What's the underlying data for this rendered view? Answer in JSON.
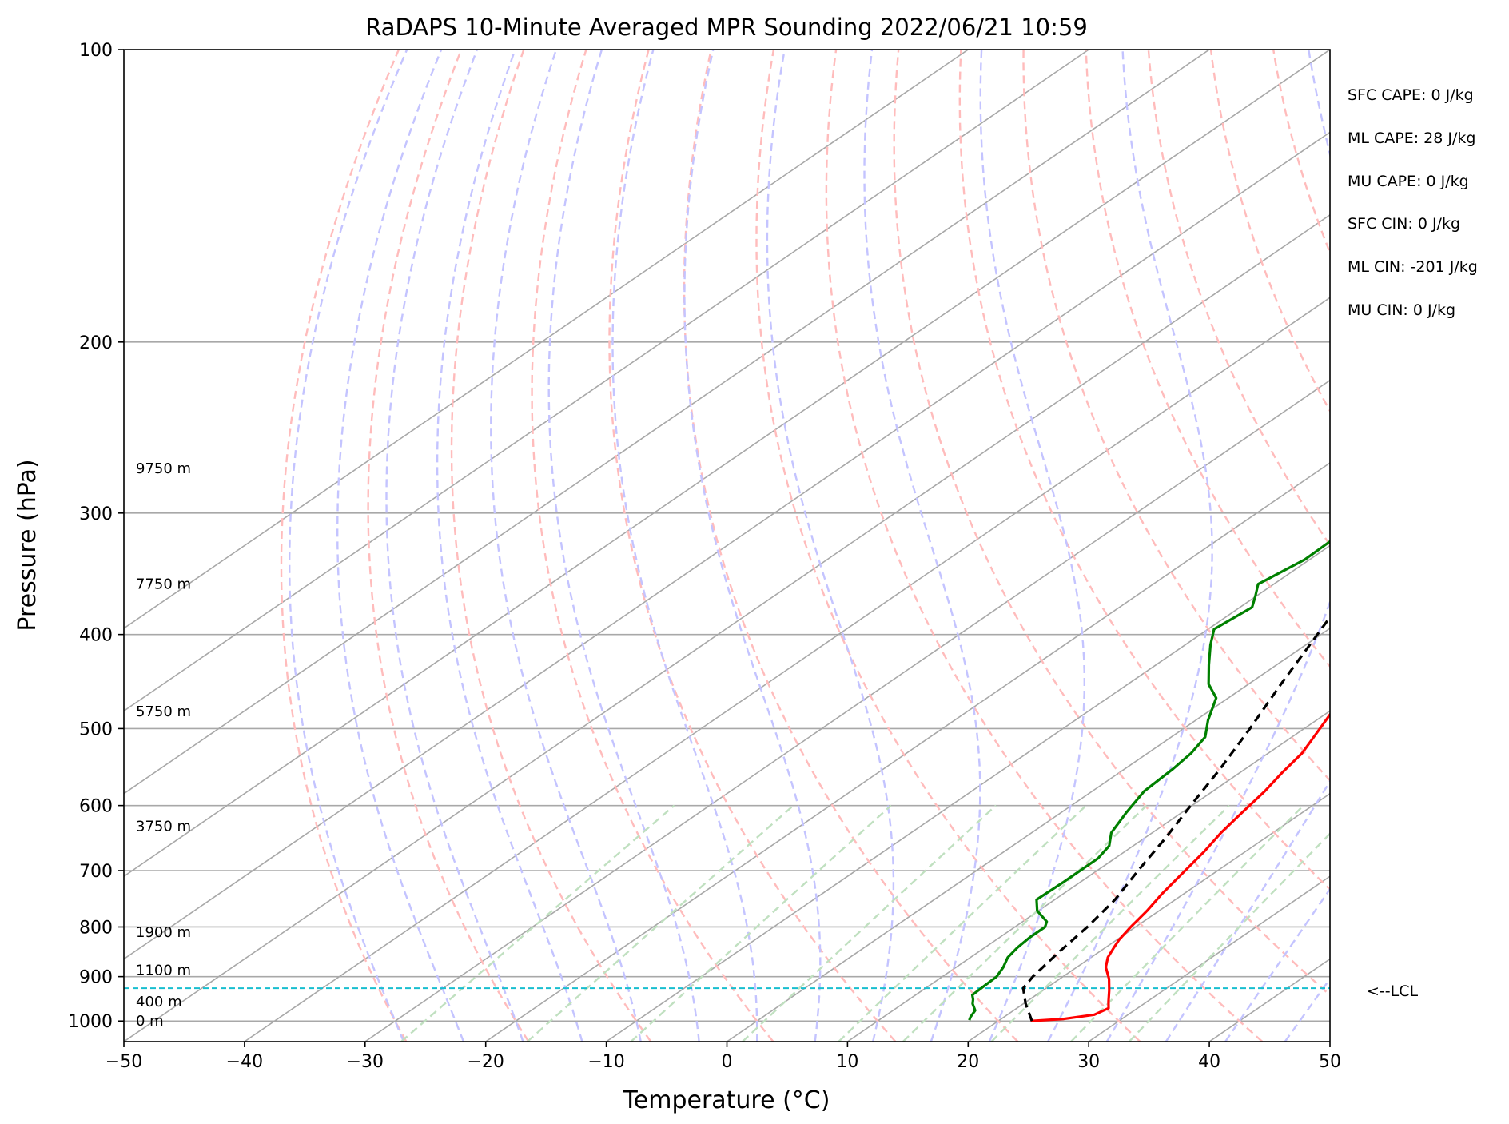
{
  "chart_data": {
    "type": "line",
    "title": "RaDAPS 10-Minute Averaged MPR Sounding 2022/06/21 10:59",
    "xlabel": "Temperature (°C)",
    "ylabel": "Pressure (hPa)",
    "xlim": [
      -50,
      50
    ],
    "ylim": [
      1050,
      100
    ],
    "y_scale": "log",
    "grid": true,
    "x_ticks": [
      -50,
      -40,
      -30,
      -20,
      -10,
      0,
      10,
      20,
      30,
      40,
      50
    ],
    "x_tick_labels": [
      "−50",
      "−40",
      "−30",
      "−20",
      "−10",
      "0",
      "10",
      "20",
      "30",
      "40",
      "50"
    ],
    "y_ticks": [
      100,
      200,
      300,
      400,
      500,
      600,
      700,
      800,
      900,
      1000
    ],
    "y_tick_labels": [
      "100",
      "200",
      "300",
      "400",
      "500",
      "600",
      "700",
      "800",
      "900",
      "1000"
    ],
    "series": [
      {
        "role": "temperature",
        "color": "#ff0000",
        "style": "solid",
        "points": [
          [
            1000,
            22.7
          ],
          [
            995,
            25.2
          ],
          [
            985,
            27.2
          ],
          [
            970,
            27.6
          ],
          [
            955,
            26.8
          ],
          [
            930,
            25.5
          ],
          [
            905,
            24.1
          ],
          [
            880,
            22.4
          ],
          [
            860,
            21.4
          ],
          [
            840,
            20.7
          ],
          [
            825,
            20.2
          ],
          [
            800,
            19.6
          ],
          [
            770,
            19.0
          ],
          [
            740,
            18.2
          ],
          [
            700,
            17.3
          ],
          [
            670,
            16.6
          ],
          [
            640,
            15.7
          ],
          [
            610,
            15.0
          ],
          [
            580,
            14.3
          ],
          [
            555,
            13.5
          ],
          [
            530,
            12.8
          ],
          [
            500,
            11.3
          ],
          [
            470,
            9.7
          ],
          [
            440,
            7.8
          ],
          [
            410,
            5.3
          ],
          [
            380,
            2.5
          ],
          [
            350,
            -0.7
          ],
          [
            320,
            -4.5
          ],
          [
            300,
            -7.3
          ],
          [
            280,
            -10.2
          ]
        ]
      },
      {
        "role": "dewpoint",
        "color": "#008000",
        "style": "solid",
        "points": [
          [
            998,
            17.5
          ],
          [
            990,
            17.2
          ],
          [
            975,
            16.8
          ],
          [
            960,
            15.8
          ],
          [
            950,
            15.3
          ],
          [
            940,
            14.7
          ],
          [
            920,
            14.6
          ],
          [
            900,
            14.5
          ],
          [
            880,
            13.9
          ],
          [
            860,
            13.1
          ],
          [
            840,
            12.7
          ],
          [
            820,
            12.5
          ],
          [
            800,
            12.5
          ],
          [
            790,
            12.0
          ],
          [
            770,
            9.9
          ],
          [
            750,
            8.5
          ],
          [
            720,
            8.6
          ],
          [
            700,
            8.6
          ],
          [
            680,
            8.6
          ],
          [
            660,
            8.0
          ],
          [
            640,
            6.6
          ],
          [
            610,
            5.4
          ],
          [
            580,
            4.3
          ],
          [
            550,
            4.0
          ],
          [
            530,
            3.6
          ],
          [
            510,
            2.8
          ],
          [
            490,
            1.0
          ],
          [
            465,
            -1.0
          ],
          [
            450,
            -3.3
          ],
          [
            430,
            -5.6
          ],
          [
            410,
            -7.9
          ],
          [
            395,
            -9.5
          ],
          [
            375,
            -9.0
          ],
          [
            365,
            -10.1
          ],
          [
            355,
            -11.3
          ],
          [
            335,
            -10.4
          ],
          [
            320,
            -10.5
          ],
          [
            300,
            -11.2
          ],
          [
            285,
            -14.8
          ],
          [
            276,
            -18.0
          ]
        ]
      },
      {
        "role": "parcel",
        "color": "#000000",
        "style": "dashed",
        "points": [
          [
            1000,
            22.8
          ],
          [
            960,
            20.2
          ],
          [
            925,
            18.1
          ],
          [
            900,
            17.5
          ],
          [
            850,
            16.7
          ],
          [
            800,
            16.0
          ],
          [
            750,
            15.0
          ],
          [
            700,
            13.4
          ],
          [
            650,
            11.8
          ],
          [
            600,
            9.9
          ],
          [
            550,
            7.9
          ],
          [
            500,
            5.5
          ],
          [
            450,
            2.7
          ],
          [
            400,
            -0.3
          ],
          [
            350,
            -3.7
          ],
          [
            300,
            -7.3
          ],
          [
            277,
            -9.2
          ]
        ]
      }
    ],
    "lcl_pressure": 925,
    "lcl_label": "<--LCL",
    "height_labels": [
      {
        "label": "0 m",
        "p": 1000
      },
      {
        "label": "400 m",
        "p": 955
      },
      {
        "label": "1100 m",
        "p": 886
      },
      {
        "label": "1900 m",
        "p": 810
      },
      {
        "label": "3750 m",
        "p": 630
      },
      {
        "label": "5750 m",
        "p": 480
      },
      {
        "label": "7750 m",
        "p": 355
      },
      {
        "label": "9750 m",
        "p": 270
      }
    ],
    "stats": [
      "SFC CAPE: 0 J/kg",
      "ML CAPE: 28 J/kg",
      "MU CAPE: 0 J/kg",
      "SFC CIN: 0 J/kg",
      "ML CIN: -201 J/kg",
      "MU CIN: 0 J/kg"
    ],
    "background_lines": {
      "isotherm_color": "#a8a8a8",
      "dry_adiabat_color": "#ffbcbc",
      "moist_adiabat_color": "#c4c4ff",
      "mixing_ratio_color": "#c0e0c0",
      "lcl_line_color": "#17becf"
    }
  }
}
